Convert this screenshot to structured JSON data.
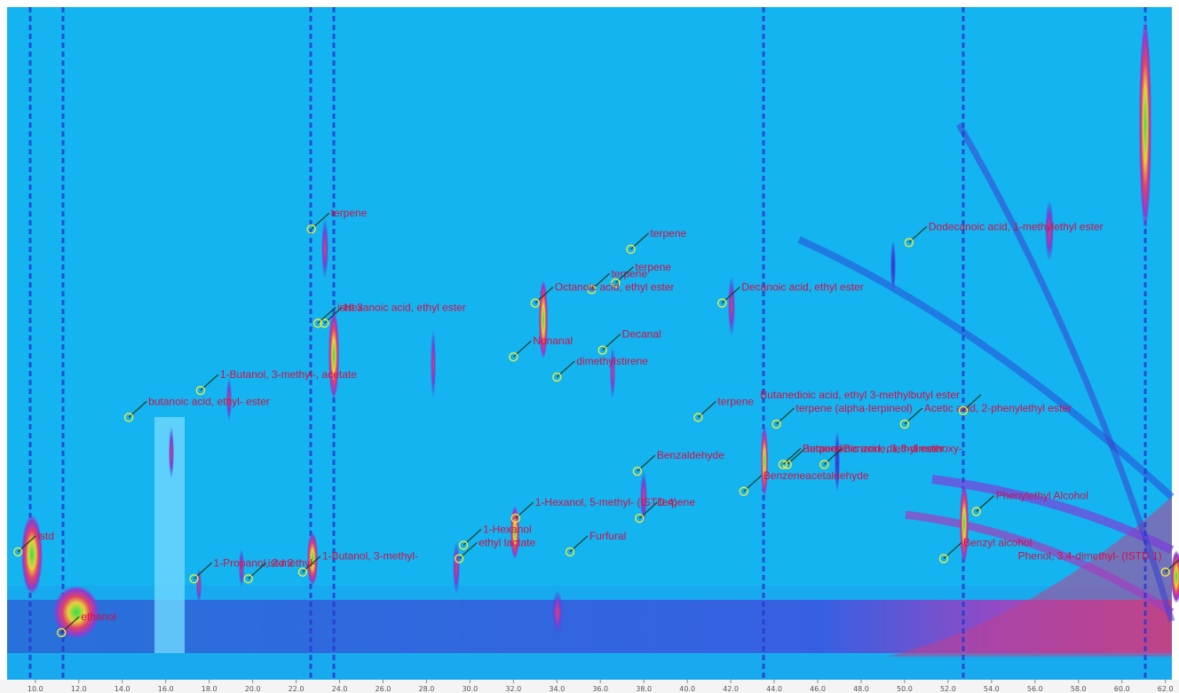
{
  "chart_data": {
    "type": "heatmap",
    "title": "",
    "xlabel": "",
    "ylabel": "",
    "colors": {
      "background": "#14b4f0",
      "low": "#2a4ad8",
      "mid": "#9a3fc4",
      "high": "#e0406a",
      "peak": "#2fe04a",
      "marker": "#f0ea3a",
      "label": "#d0114a"
    },
    "x_ticks": [
      "10.0",
      "12.0",
      "14.0",
      "16.0",
      "18.0",
      "20.0",
      "22.0",
      "24.0",
      "26.0",
      "28.0",
      "30.0",
      "32.0",
      "34.0",
      "36.0",
      "38.0",
      "40.0",
      "42.0",
      "44.0",
      "46.0",
      "48.0",
      "50.0",
      "52.0",
      "54.0",
      "56.0",
      "58.0",
      "60.0",
      "62.0"
    ],
    "annotations": [
      {
        "label": "terpene",
        "x": 22.7,
        "y": 0.67
      },
      {
        "label": "terpene",
        "x": 35.6,
        "y": 0.58
      },
      {
        "label": "terpene",
        "x": 36.7,
        "y": 0.59
      },
      {
        "label": "terpene",
        "x": 37.4,
        "y": 0.64
      },
      {
        "label": "Dodecanoic acid, 1-methylethyl ester",
        "x": 50.2,
        "y": 0.65
      },
      {
        "label": "Octanoic acid, ethyl ester",
        "x": 33.0,
        "y": 0.56
      },
      {
        "label": "Decanoic acid, ethyl ester",
        "x": 41.6,
        "y": 0.56
      },
      {
        "label": "Nonanal",
        "x": 32.0,
        "y": 0.48
      },
      {
        "label": "Decanal",
        "x": 36.1,
        "y": 0.49
      },
      {
        "label": "Hexanoic acid, ethyl ester",
        "x": 23.3,
        "y": 0.53
      },
      {
        "label": "istd 3",
        "x": 23.0,
        "y": 0.53
      },
      {
        "label": "dimethylstirene",
        "x": 34.0,
        "y": 0.45
      },
      {
        "label": "1-Butanol, 3-methyl-, acetate",
        "x": 17.6,
        "y": 0.43
      },
      {
        "label": "butanoic acid, ethyl- ester",
        "x": 14.3,
        "y": 0.39
      },
      {
        "label": "terpene",
        "x": 40.5,
        "y": 0.39
      },
      {
        "label": "terpene (alpha-terpineol)",
        "x": 44.1,
        "y": 0.38
      },
      {
        "label": "terpene",
        "x": 44.6,
        "y": 0.32
      },
      {
        "label": "Acetic acid, 2-phenylethyl ester",
        "x": 50.0,
        "y": 0.38
      },
      {
        "label": "Butanedioic acid, ethyl 3-methylbutyl ester",
        "x": 52.7,
        "y": 0.4
      },
      {
        "label": "Benzaldehyde",
        "x": 37.7,
        "y": 0.31
      },
      {
        "label": "Benzeneacetaldehyde",
        "x": 42.6,
        "y": 0.28
      },
      {
        "label": "Butanedioic acid, diethyl ester",
        "x": 44.4,
        "y": 0.32
      },
      {
        "label": "Benzene, 1,3-dimethoxy-",
        "x": 46.3,
        "y": 0.32
      },
      {
        "label": "terpene",
        "x": 37.8,
        "y": 0.24
      },
      {
        "label": "Phenylethyl Alcohol",
        "x": 53.3,
        "y": 0.25
      },
      {
        "label": "Furfural",
        "x": 34.6,
        "y": 0.19
      },
      {
        "label": "1-Hexanol, 5-methyl- (ISTD 4)",
        "x": 32.1,
        "y": 0.24
      },
      {
        "label": "1-Hexanol",
        "x": 29.7,
        "y": 0.2
      },
      {
        "label": "ethyl lactate",
        "x": 29.5,
        "y": 0.18
      },
      {
        "label": "Benzyl alcohol",
        "x": 51.8,
        "y": 0.18
      },
      {
        "label": "Phenol, 3,4-dimethyl- (ISTD 1)",
        "x": 62.0,
        "y": 0.16
      },
      {
        "label": "istd",
        "x": 9.2,
        "y": 0.19
      },
      {
        "label": "ethanol",
        "x": 11.2,
        "y": 0.07
      },
      {
        "label": "1-Propanol, 2-methyl-",
        "x": 17.3,
        "y": 0.15
      },
      {
        "label": "istd 2",
        "x": 19.8,
        "y": 0.15
      },
      {
        "label": "1-Butanol, 3-methyl-",
        "x": 22.3,
        "y": 0.16
      }
    ]
  }
}
